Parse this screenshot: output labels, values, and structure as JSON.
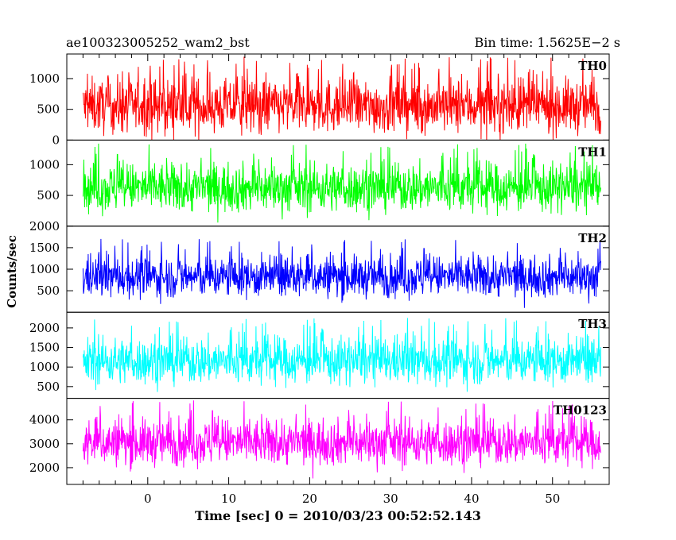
{
  "header": {
    "title": "ae100323005252_wam2_bst",
    "bin_time": "Bin time: 1.5625E−2 s"
  },
  "chart_data": {
    "type": "line",
    "xlabel": "Time [sec] 0 = 2010/03/23 00:52:52.143",
    "ylabel": "Counts/sec",
    "xlim": [
      -10,
      57
    ],
    "x_ticks": [
      "0",
      "10",
      "20",
      "30",
      "40",
      "50"
    ],
    "data_x_range": [
      -8,
      56
    ],
    "grid": false,
    "panels": [
      {
        "name": "TH0",
        "color": "#ff0000",
        "ylim": [
          0,
          1400
        ],
        "y_ticks": [
          "0",
          "500",
          "1000"
        ],
        "mean": 550,
        "spread": 480,
        "min_clip": 0
      },
      {
        "name": "TH1",
        "color": "#00ff00",
        "ylim": [
          0,
          1400
        ],
        "y_ticks": [
          "500",
          "1000"
        ],
        "mean": 620,
        "spread": 430,
        "min_clip": 60
      },
      {
        "name": "TH2",
        "color": "#0000ff",
        "ylim": [
          0,
          2000
        ],
        "y_ticks": [
          "500",
          "1000",
          "1500",
          "2000"
        ],
        "mean": 820,
        "spread": 520,
        "min_clip": 100
      },
      {
        "name": "TH3",
        "color": "#00ffff",
        "ylim": [
          200,
          2400
        ],
        "y_ticks": [
          "500",
          "1000",
          "1500",
          "2000"
        ],
        "mean": 1150,
        "spread": 650,
        "min_clip": 300
      },
      {
        "name": "TH0123",
        "color": "#ff00ff",
        "ylim": [
          1300,
          4900
        ],
        "y_ticks": [
          "2000",
          "3000",
          "4000"
        ],
        "mean": 3050,
        "spread": 1050,
        "min_clip": 1350
      }
    ]
  }
}
